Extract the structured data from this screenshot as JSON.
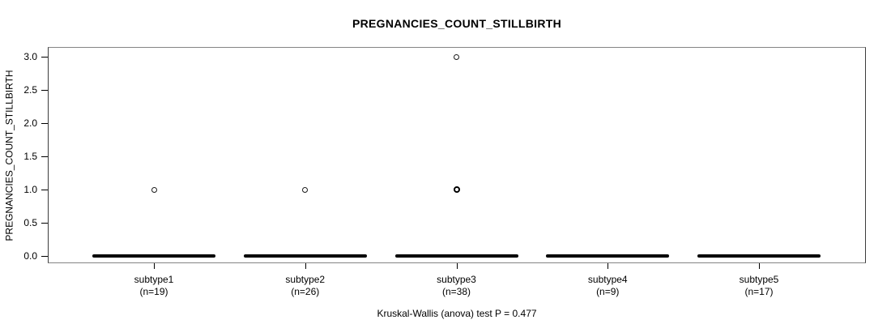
{
  "chart_data": {
    "type": "box",
    "title": "PREGNANCIES_COUNT_STILLBIRTH",
    "ylabel": "PREGNANCIES_COUNT_STILLBIRTH",
    "xlabel": "",
    "annotation": "Kruskal-Wallis (anova) test P = 0.477",
    "ylim": [
      0.0,
      3.0
    ],
    "grid": false,
    "legend": "none",
    "y_ticks": [
      0.0,
      0.5,
      1.0,
      1.5,
      2.0,
      2.5,
      3.0
    ],
    "y_tick_labels": [
      "0.0",
      "0.5",
      "1.0",
      "1.5",
      "2.0",
      "2.5",
      "3.0"
    ],
    "categories": [
      "subtype1",
      "subtype2",
      "subtype3",
      "subtype4",
      "subtype5"
    ],
    "groups": [
      {
        "label": "subtype1",
        "n_label": "(n=19)",
        "n": 19,
        "median": 0,
        "q1": 0,
        "q3": 0,
        "whisker_low": 0,
        "whisker_high": 0,
        "outliers": [
          {
            "value": 1,
            "overplotted": false
          }
        ]
      },
      {
        "label": "subtype2",
        "n_label": "(n=26)",
        "n": 26,
        "median": 0,
        "q1": 0,
        "q3": 0,
        "whisker_low": 0,
        "whisker_high": 0,
        "outliers": [
          {
            "value": 1,
            "overplotted": false
          }
        ]
      },
      {
        "label": "subtype3",
        "n_label": "(n=38)",
        "n": 38,
        "median": 0,
        "q1": 0,
        "q3": 0,
        "whisker_low": 0,
        "whisker_high": 0,
        "outliers": [
          {
            "value": 3,
            "overplotted": false
          },
          {
            "value": 1,
            "overplotted": true
          }
        ]
      },
      {
        "label": "subtype4",
        "n_label": "(n=9)",
        "n": 9,
        "median": 0,
        "q1": 0,
        "q3": 0,
        "whisker_low": 0,
        "whisker_high": 0,
        "outliers": []
      },
      {
        "label": "subtype5",
        "n_label": "(n=17)",
        "n": 17,
        "median": 0,
        "q1": 0,
        "q3": 0,
        "whisker_low": 0,
        "whisker_high": 0,
        "outliers": []
      }
    ],
    "colors": {
      "ink": "#000000",
      "box_border": "#848484",
      "background": "#ffffff"
    }
  }
}
